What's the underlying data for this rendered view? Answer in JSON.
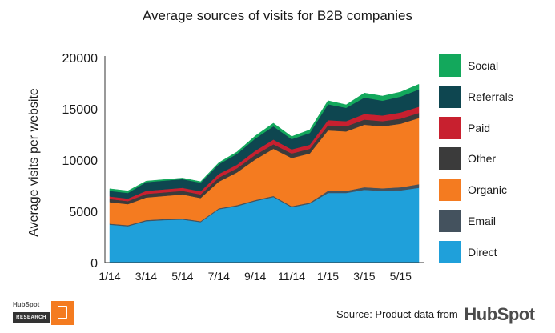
{
  "chart_data": {
    "type": "area",
    "stacked": true,
    "title": "Average sources of visits for B2B companies",
    "ylabel": "Average visits per website",
    "xlabel": "",
    "ylim": [
      0,
      20000
    ],
    "yticks": [
      "0",
      "5000",
      "10000",
      "15000",
      "20000"
    ],
    "x": [
      "1/14",
      "2/14",
      "3/14",
      "4/14",
      "5/14",
      "6/14",
      "7/14",
      "8/14",
      "9/14",
      "10/14",
      "11/14",
      "12/14",
      "1/15",
      "2/15",
      "3/15",
      "4/15",
      "5/15",
      "6/15"
    ],
    "xtick_labels": [
      "1/14",
      "3/14",
      "5/14",
      "7/14",
      "9/14",
      "11/14",
      "1/15",
      "3/15",
      "5/15"
    ],
    "legend_position": "right",
    "series": [
      {
        "name": "Direct",
        "color": "#1fa0da",
        "values": [
          3700,
          3550,
          4050,
          4150,
          4200,
          3950,
          5200,
          5500,
          6000,
          6400,
          5400,
          5750,
          6800,
          6800,
          7100,
          7000,
          7050,
          7300
        ]
      },
      {
        "name": "Email",
        "color": "#44525e",
        "values": [
          100,
          100,
          100,
          100,
          100,
          100,
          100,
          100,
          100,
          100,
          100,
          100,
          200,
          200,
          250,
          250,
          300,
          350
        ]
      },
      {
        "name": "Organic",
        "color": "#f47b20",
        "values": [
          2100,
          2050,
          2200,
          2250,
          2350,
          2250,
          2600,
          3200,
          3950,
          4600,
          4700,
          4800,
          5900,
          5800,
          6100,
          6050,
          6200,
          6450
        ]
      },
      {
        "name": "Other",
        "color": "#3b3b3b",
        "values": [
          300,
          300,
          350,
          350,
          350,
          350,
          400,
          400,
          450,
          450,
          450,
          450,
          500,
          500,
          500,
          500,
          500,
          500
        ]
      },
      {
        "name": "Paid",
        "color": "#c8202f",
        "values": [
          250,
          250,
          300,
          300,
          300,
          300,
          350,
          350,
          400,
          450,
          400,
          400,
          500,
          500,
          550,
          550,
          600,
          600
        ]
      },
      {
        "name": "Referrals",
        "color": "#0e4650",
        "values": [
          550,
          550,
          850,
          850,
          850,
          850,
          950,
          1050,
          1200,
          1300,
          1000,
          1150,
          1550,
          1300,
          1600,
          1450,
          1550,
          1700
        ]
      },
      {
        "name": "Social",
        "color": "#13a85c",
        "values": [
          200,
          200,
          100,
          100,
          100,
          100,
          150,
          200,
          250,
          300,
          250,
          300,
          350,
          300,
          450,
          450,
          450,
          500
        ]
      }
    ],
    "legend_order": [
      "Social",
      "Referrals",
      "Paid",
      "Other",
      "Organic",
      "Email",
      "Direct"
    ]
  },
  "footer": {
    "source_text": "Source: Product data from",
    "brand": "HubSpot",
    "badge_logo": "HubSpot",
    "badge_label": "RESEARCH"
  }
}
